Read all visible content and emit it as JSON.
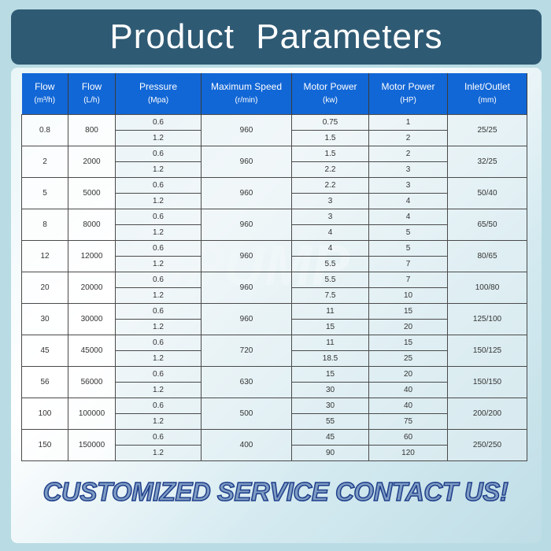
{
  "title": "Product  Parameters",
  "watermark": "3GPUMP",
  "cta": "CUSTOMIZED SERVICE CONTACT US!",
  "headers": [
    {
      "label": "Flow",
      "unit": "(m³/h)"
    },
    {
      "label": "Flow",
      "unit": "(L/h)"
    },
    {
      "label": "Pressure",
      "unit": "(Mpa)"
    },
    {
      "label": "Maximum  Speed",
      "unit": "(r/min)"
    },
    {
      "label": "Motor  Power",
      "unit": "(kw)"
    },
    {
      "label": "Motor  Power",
      "unit": "(HP)"
    },
    {
      "label": "Inlet/Outlet",
      "unit": "(mm)"
    }
  ],
  "rows": [
    {
      "flow_m3h": "0.8",
      "flow_lh": "800",
      "pressure": [
        "0.6",
        "1.2"
      ],
      "speed": "960",
      "kw": [
        "0.75",
        "1.5"
      ],
      "hp": [
        "1",
        "2"
      ],
      "inlet": "25/25"
    },
    {
      "flow_m3h": "2",
      "flow_lh": "2000",
      "pressure": [
        "0.6",
        "1.2"
      ],
      "speed": "960",
      "kw": [
        "1.5",
        "2.2"
      ],
      "hp": [
        "2",
        "3"
      ],
      "inlet": "32/25"
    },
    {
      "flow_m3h": "5",
      "flow_lh": "5000",
      "pressure": [
        "0.6",
        "1.2"
      ],
      "speed": "960",
      "kw": [
        "2.2",
        "3"
      ],
      "hp": [
        "3",
        "4"
      ],
      "inlet": "50/40"
    },
    {
      "flow_m3h": "8",
      "flow_lh": "8000",
      "pressure": [
        "0.6",
        "1.2"
      ],
      "speed": "960",
      "kw": [
        "3",
        "4"
      ],
      "hp": [
        "4",
        "5"
      ],
      "inlet": "65/50"
    },
    {
      "flow_m3h": "12",
      "flow_lh": "12000",
      "pressure": [
        "0.6",
        "1.2"
      ],
      "speed": "960",
      "kw": [
        "4",
        "5.5"
      ],
      "hp": [
        "5",
        "7"
      ],
      "inlet": "80/65"
    },
    {
      "flow_m3h": "20",
      "flow_lh": "20000",
      "pressure": [
        "0.6",
        "1.2"
      ],
      "speed": "960",
      "kw": [
        "5.5",
        "7.5"
      ],
      "hp": [
        "7",
        "10"
      ],
      "inlet": "100/80"
    },
    {
      "flow_m3h": "30",
      "flow_lh": "30000",
      "pressure": [
        "0.6",
        "1.2"
      ],
      "speed": "960",
      "kw": [
        "11",
        "15"
      ],
      "hp": [
        "15",
        "20"
      ],
      "inlet": "125/100"
    },
    {
      "flow_m3h": "45",
      "flow_lh": "45000",
      "pressure": [
        "0.6",
        "1.2"
      ],
      "speed": "720",
      "kw": [
        "11",
        "18.5"
      ],
      "hp": [
        "15",
        "25"
      ],
      "inlet": "150/125"
    },
    {
      "flow_m3h": "56",
      "flow_lh": "56000",
      "pressure": [
        "0.6",
        "1.2"
      ],
      "speed": "630",
      "kw": [
        "15",
        "30"
      ],
      "hp": [
        "20",
        "40"
      ],
      "inlet": "150/150"
    },
    {
      "flow_m3h": "100",
      "flow_lh": "100000",
      "pressure": [
        "0.6",
        "1.2"
      ],
      "speed": "500",
      "kw": [
        "30",
        "55"
      ],
      "hp": [
        "40",
        "75"
      ],
      "inlet": "200/200"
    },
    {
      "flow_m3h": "150",
      "flow_lh": "150000",
      "pressure": [
        "0.6",
        "1.2"
      ],
      "speed": "400",
      "kw": [
        "45",
        "90"
      ],
      "hp": [
        "60",
        "120"
      ],
      "inlet": "250/250"
    }
  ]
}
